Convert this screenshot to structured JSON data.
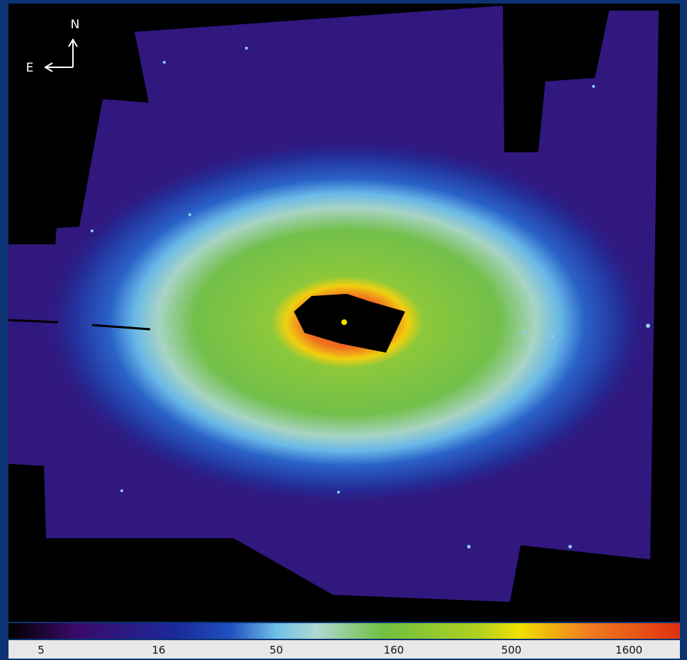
{
  "compass": {
    "north": "N",
    "east": "E"
  },
  "colorbar": {
    "ticks": [
      5,
      16,
      50,
      160,
      500,
      1600
    ]
  }
}
